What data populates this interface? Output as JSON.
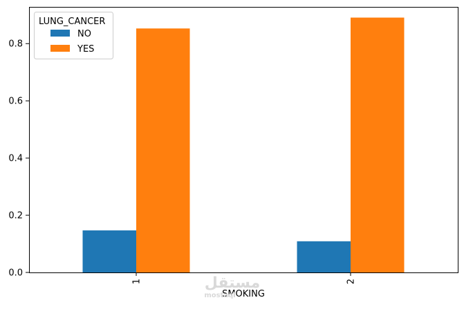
{
  "chart_data": {
    "type": "bar",
    "categories": [
      "1",
      "2"
    ],
    "series": [
      {
        "name": "NO",
        "values": [
          0.147,
          0.109
        ],
        "color": "#1f77b4"
      },
      {
        "name": "YES",
        "values": [
          0.853,
          0.891
        ],
        "color": "#ff7f0e"
      }
    ],
    "xlabel": "SMOKING",
    "ylabel": "",
    "ylim": [
      0,
      0.9284
    ],
    "yticks": [
      0.0,
      0.2,
      0.4,
      0.6,
      0.8
    ],
    "ytick_labels": [
      "0.0",
      "0.2",
      "0.4",
      "0.6",
      "0.8"
    ],
    "xtick_rotation": "vertical",
    "grid": false,
    "legend": {
      "title": "LUNG_CANCER",
      "placement": "top-left",
      "entries": [
        "NO",
        "YES"
      ]
    }
  },
  "watermark": {
    "text": "مستقل",
    "subtext": "mostaql"
  }
}
